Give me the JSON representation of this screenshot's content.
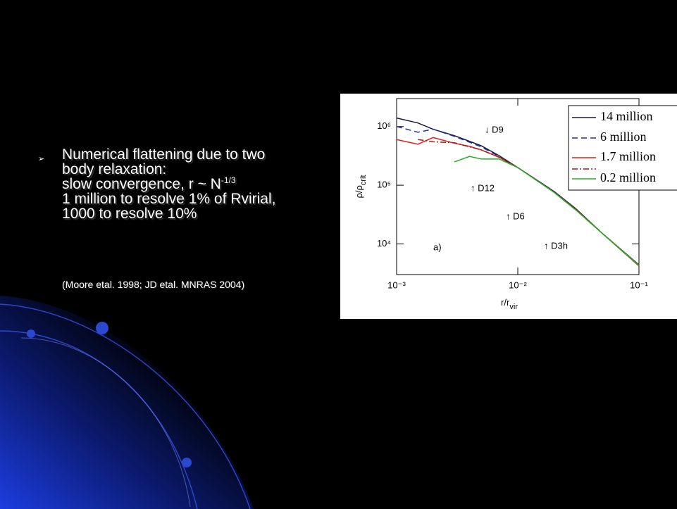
{
  "slide": {
    "bullet": [
      "Numerical flattening due to two",
      "body relaxation:",
      "slow convergence, r ~ N",
      "1 million to resolve 1% of Rvirial,",
      "1000 to resolve 10%"
    ],
    "bullet_superscript": "-1/3",
    "citation": "(Moore etal. 1998; JD etal. MNRAS 2004)"
  },
  "chart_data": {
    "type": "line",
    "xscale": "log",
    "yscale": "log",
    "xlabel": {
      "text": "r/r",
      "sub": "vir"
    },
    "ylabel": {
      "text": "ρ/ρ",
      "sub": "crit"
    },
    "annotations": [
      "↓ D9",
      "↑ D12",
      "↑ D6",
      "↑ D3h",
      "a)"
    ],
    "x": [
      0.001,
      0.0015,
      0.002,
      0.003,
      0.004,
      0.005,
      0.007,
      0.01,
      0.02,
      0.03,
      0.05,
      0.1
    ],
    "series": [
      {
        "name": "14 million",
        "color": "#1a1a40",
        "dash": "solid",
        "values": [
          1400000,
          1150000,
          900000,
          700000,
          560000,
          470000,
          320000,
          200000,
          78000,
          40000,
          15000,
          4400
        ]
      },
      {
        "name": "6 million",
        "color": "#1f2fa8",
        "dash": "dashed",
        "values": [
          1000000,
          800000,
          900000,
          680000,
          540000,
          450000,
          310000,
          200000,
          78000,
          40000,
          15000,
          4300
        ]
      },
      {
        "name": "1.7 million",
        "color": "#e0201a",
        "dash": "solid",
        "values": [
          600000,
          500000,
          650000,
          520000,
          460000,
          400000,
          300000,
          200000,
          76000,
          39000,
          15000,
          4200
        ]
      },
      {
        "name": null,
        "color": "#a01818",
        "dash": "dashdot",
        "values": [
          null,
          600000,
          550000,
          530000,
          450000,
          400000,
          300000,
          200000,
          76000,
          39000,
          15000,
          4300
        ]
      },
      {
        "name": "0.2 million",
        "color": "#22b022",
        "dash": "solid",
        "values": [
          null,
          null,
          null,
          250000,
          310000,
          280000,
          280000,
          200000,
          75000,
          38000,
          15000,
          4300
        ]
      }
    ],
    "xlim": [
      0.001,
      0.1
    ],
    "ylim": [
      3000,
      3000000
    ],
    "xticks": [
      {
        "value": 0.001,
        "label": "10⁻³"
      },
      {
        "value": 0.01,
        "label": "10⁻²"
      },
      {
        "value": 0.1,
        "label": "10⁻¹"
      }
    ],
    "yticks": [
      {
        "value": 10000,
        "label": "10⁴"
      },
      {
        "value": 100000,
        "label": "10⁵"
      },
      {
        "value": 1000000,
        "label": "10⁶"
      }
    ],
    "grid": false,
    "legend": "upper right"
  }
}
